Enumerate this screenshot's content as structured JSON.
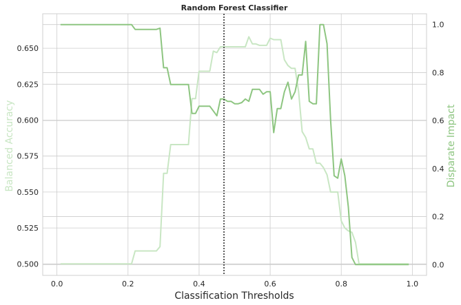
{
  "chart_data": {
    "type": "line",
    "title": "Random Forest Classifier",
    "xlabel": "Classification Thresholds",
    "ylabel_left": "Balanced Accuracy",
    "ylabel_right": "Disparate Impact",
    "xlim": [
      -0.04,
      1.04
    ],
    "ylim_left": [
      0.492,
      0.674
    ],
    "ylim_right": [
      -0.045,
      1.045
    ],
    "x_ticks": [
      "0.0",
      "0.2",
      "0.4",
      "0.6",
      "0.8",
      "1.0"
    ],
    "y_left_ticks": [
      "0.500",
      "0.525",
      "0.550",
      "0.575",
      "0.600",
      "0.625",
      "0.650"
    ],
    "y_right_ticks": [
      "0.0",
      "0.2",
      "0.4",
      "0.6",
      "0.8",
      "1.0"
    ],
    "grid": true,
    "vline": {
      "x": 0.47,
      "style": "dotted"
    },
    "colors": {
      "balanced_accuracy": "#c8e6c3",
      "disparate_impact": "#8dc580",
      "vline": "#222222",
      "left_label": "#c8e6c3",
      "right_label": "#8dc580"
    },
    "series": [
      {
        "axis": "left",
        "x": [
          0.01,
          0.05,
          0.1,
          0.15,
          0.2,
          0.21,
          0.22,
          0.23,
          0.24,
          0.25,
          0.26,
          0.27,
          0.28,
          0.29,
          0.3,
          0.31,
          0.32,
          0.33,
          0.34,
          0.35,
          0.36,
          0.37,
          0.38,
          0.39,
          0.4,
          0.41,
          0.42,
          0.43,
          0.44,
          0.45,
          0.46,
          0.47,
          0.48,
          0.49,
          0.5,
          0.51,
          0.52,
          0.53,
          0.54,
          0.55,
          0.56,
          0.57,
          0.58,
          0.59,
          0.6,
          0.61,
          0.62,
          0.63,
          0.64,
          0.65,
          0.66,
          0.67,
          0.68,
          0.69,
          0.7,
          0.71,
          0.72,
          0.73,
          0.74,
          0.75,
          0.76,
          0.77,
          0.78,
          0.79,
          0.8,
          0.81,
          0.82,
          0.83,
          0.84,
          0.85,
          0.86,
          0.87,
          0.9,
          0.95,
          0.99
        ],
        "values": [
          0.5,
          0.5,
          0.5,
          0.5,
          0.5,
          0.5,
          0.509,
          0.509,
          0.509,
          0.509,
          0.509,
          0.509,
          0.509,
          0.512,
          0.563,
          0.563,
          0.583,
          0.583,
          0.583,
          0.583,
          0.583,
          0.583,
          0.615,
          0.615,
          0.634,
          0.634,
          0.634,
          0.634,
          0.648,
          0.647,
          0.651,
          0.651,
          0.651,
          0.651,
          0.651,
          0.651,
          0.651,
          0.651,
          0.658,
          0.653,
          0.653,
          0.652,
          0.652,
          0.652,
          0.657,
          0.656,
          0.656,
          0.656,
          0.642,
          0.638,
          0.636,
          0.636,
          0.62,
          0.592,
          0.588,
          0.58,
          0.58,
          0.57,
          0.57,
          0.567,
          0.562,
          0.55,
          0.55,
          0.55,
          0.53,
          0.525,
          0.523,
          0.522,
          0.515,
          0.5,
          0.5,
          0.5,
          0.5,
          0.5,
          0.5
        ]
      },
      {
        "axis": "right",
        "x": [
          0.01,
          0.05,
          0.1,
          0.15,
          0.2,
          0.21,
          0.22,
          0.23,
          0.24,
          0.25,
          0.26,
          0.27,
          0.28,
          0.29,
          0.3,
          0.31,
          0.32,
          0.33,
          0.34,
          0.35,
          0.36,
          0.37,
          0.38,
          0.39,
          0.4,
          0.41,
          0.42,
          0.43,
          0.44,
          0.45,
          0.46,
          0.47,
          0.48,
          0.49,
          0.5,
          0.51,
          0.52,
          0.53,
          0.54,
          0.55,
          0.56,
          0.57,
          0.58,
          0.59,
          0.6,
          0.61,
          0.62,
          0.63,
          0.64,
          0.65,
          0.66,
          0.67,
          0.68,
          0.69,
          0.7,
          0.71,
          0.72,
          0.73,
          0.74,
          0.75,
          0.76,
          0.77,
          0.78,
          0.79,
          0.8,
          0.81,
          0.82,
          0.83,
          0.84,
          0.85,
          0.86,
          0.87,
          0.9,
          0.95,
          0.99
        ],
        "values": [
          1.0,
          1.0,
          1.0,
          1.0,
          1.0,
          1.0,
          0.98,
          0.98,
          0.98,
          0.98,
          0.98,
          0.98,
          0.98,
          0.985,
          0.82,
          0.82,
          0.75,
          0.75,
          0.75,
          0.75,
          0.75,
          0.75,
          0.63,
          0.63,
          0.66,
          0.66,
          0.66,
          0.66,
          0.64,
          0.62,
          0.69,
          0.69,
          0.68,
          0.68,
          0.67,
          0.67,
          0.675,
          0.69,
          0.68,
          0.73,
          0.73,
          0.73,
          0.71,
          0.72,
          0.72,
          0.55,
          0.65,
          0.65,
          0.72,
          0.76,
          0.69,
          0.72,
          0.79,
          0.79,
          0.93,
          0.68,
          0.67,
          0.67,
          1.0,
          1.0,
          0.92,
          0.6,
          0.37,
          0.36,
          0.44,
          0.37,
          0.24,
          0.03,
          0.0,
          0.0,
          0.0,
          0.0,
          0.0,
          0.0,
          0.0
        ]
      }
    ]
  }
}
